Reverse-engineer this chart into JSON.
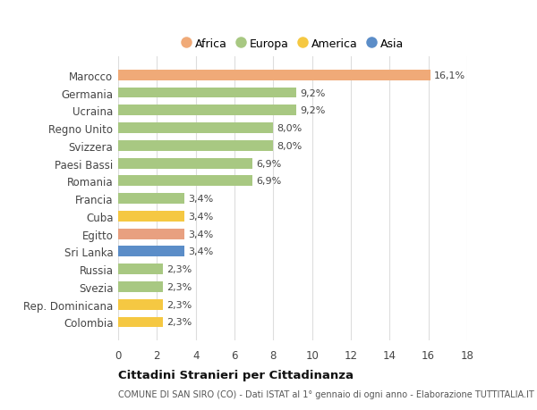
{
  "categories": [
    "Colombia",
    "Rep. Dominicana",
    "Svezia",
    "Russia",
    "Sri Lanka",
    "Egitto",
    "Cuba",
    "Francia",
    "Romania",
    "Paesi Bassi",
    "Svizzera",
    "Regno Unito",
    "Ucraina",
    "Germania",
    "Marocco"
  ],
  "values": [
    2.3,
    2.3,
    2.3,
    2.3,
    3.4,
    3.4,
    3.4,
    3.4,
    6.9,
    6.9,
    8.0,
    8.0,
    9.2,
    9.2,
    16.1
  ],
  "colors": [
    "#f5c842",
    "#f5c842",
    "#a8c882",
    "#a8c882",
    "#5b8dc8",
    "#e8a080",
    "#f5c842",
    "#a8c882",
    "#a8c882",
    "#a8c882",
    "#a8c882",
    "#a8c882",
    "#a8c882",
    "#a8c882",
    "#f0aa78"
  ],
  "labels": [
    "2,3%",
    "2,3%",
    "2,3%",
    "2,3%",
    "3,4%",
    "3,4%",
    "3,4%",
    "3,4%",
    "6,9%",
    "6,9%",
    "8,0%",
    "8,0%",
    "9,2%",
    "9,2%",
    "16,1%"
  ],
  "legend_items": [
    {
      "label": "Africa",
      "color": "#f0aa78"
    },
    {
      "label": "Europa",
      "color": "#a8c882"
    },
    {
      "label": "America",
      "color": "#f5c842"
    },
    {
      "label": "Asia",
      "color": "#5b8dc8"
    }
  ],
  "xlim": [
    0,
    18
  ],
  "xticks": [
    0,
    2,
    4,
    6,
    8,
    10,
    12,
    14,
    16,
    18
  ],
  "title": "Cittadini Stranieri per Cittadinanza",
  "subtitle": "COMUNE DI SAN SIRO (CO) - Dati ISTAT al 1° gennaio di ogni anno - Elaborazione TUTTITALIA.IT",
  "background_color": "#ffffff",
  "grid_color": "#dddddd",
  "bar_height": 0.6
}
